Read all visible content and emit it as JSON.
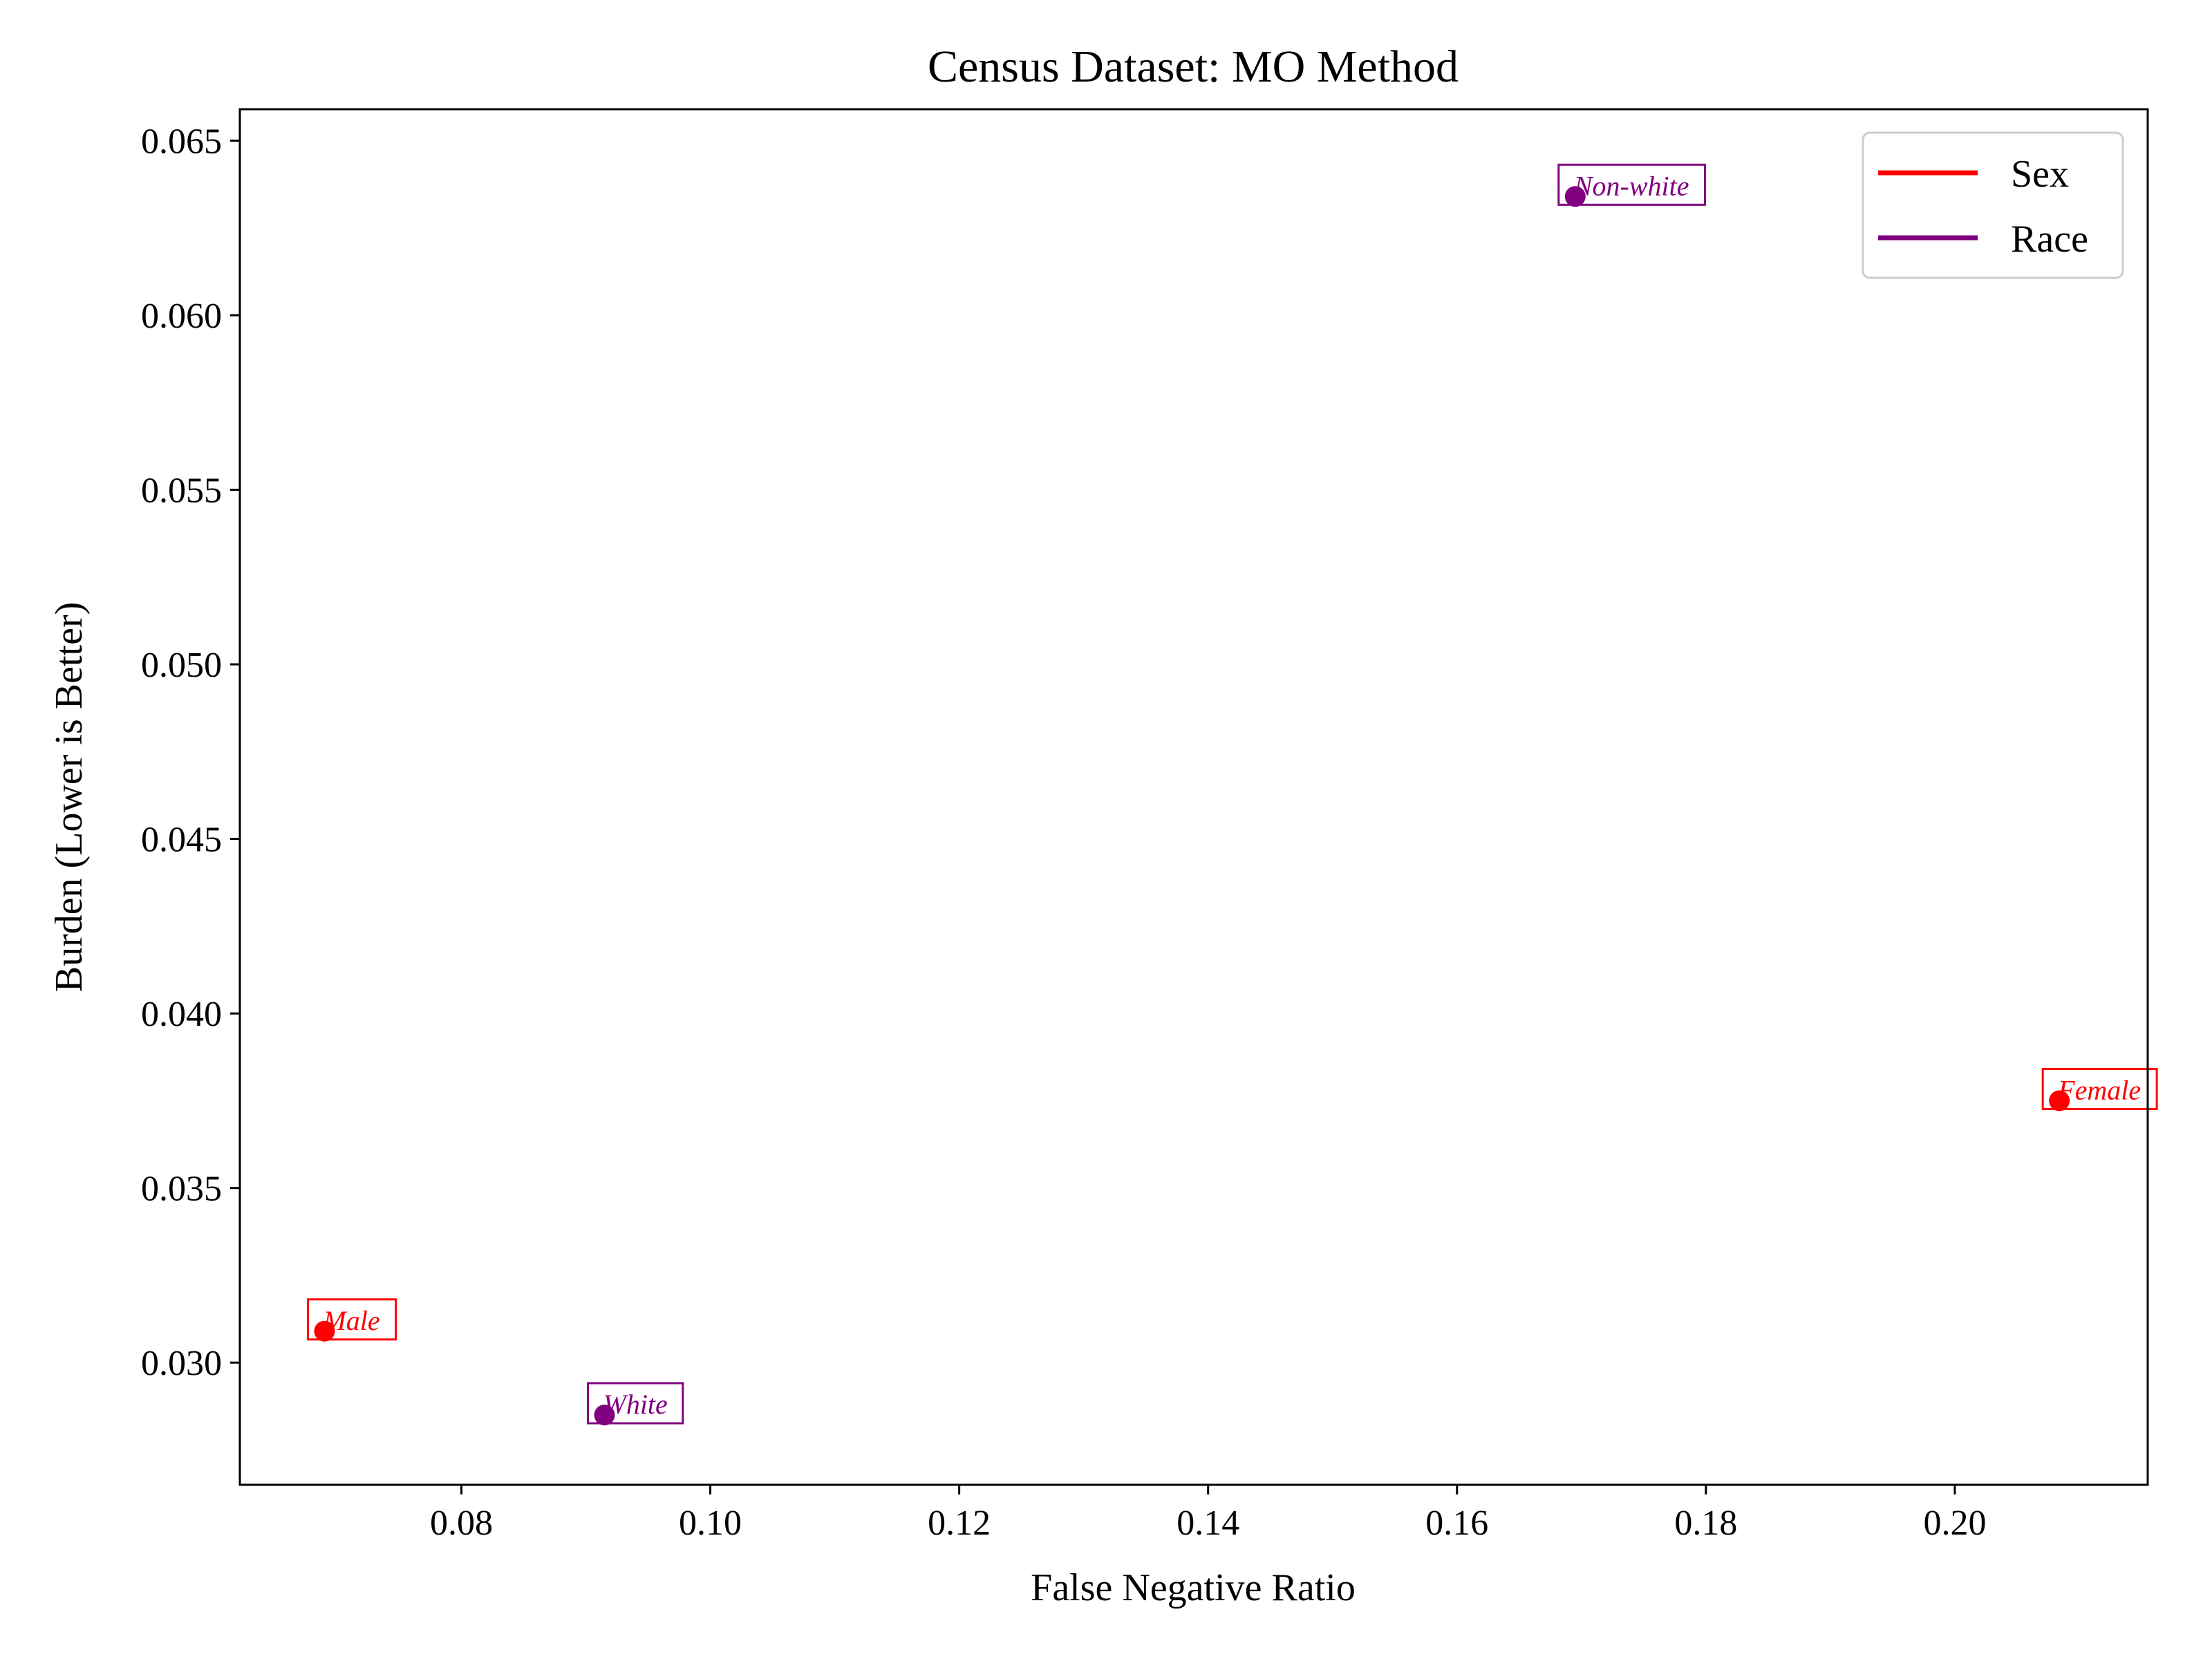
{
  "chart_data": {
    "type": "scatter",
    "title": "Census Dataset: MO Method",
    "xlabel": "False Negative Ratio",
    "ylabel": "Burden (Lower is Better)",
    "xlim": [
      0.0622,
      0.2155
    ],
    "ylim": [
      0.0265,
      0.0659
    ],
    "xticks": [
      0.08,
      0.1,
      0.12,
      0.14,
      0.16,
      0.18,
      0.2
    ],
    "xtick_labels": [
      "0.08",
      "0.10",
      "0.12",
      "0.14",
      "0.16",
      "0.18",
      "0.20"
    ],
    "yticks": [
      0.03,
      0.035,
      0.04,
      0.045,
      0.05,
      0.055,
      0.06,
      0.065
    ],
    "ytick_labels": [
      "0.030",
      "0.035",
      "0.040",
      "0.045",
      "0.050",
      "0.055",
      "0.060",
      "0.065"
    ],
    "grid": false,
    "legend_position": "top-right",
    "series": [
      {
        "name": "Sex",
        "color": "#ff0000",
        "points": [
          {
            "label": "Male",
            "x": 0.069,
            "y": 0.0309
          },
          {
            "label": "Female",
            "x": 0.2084,
            "y": 0.0375
          }
        ]
      },
      {
        "name": "Race",
        "color": "#800080",
        "points": [
          {
            "label": "White",
            "x": 0.0915,
            "y": 0.0285
          },
          {
            "label": "Non-white",
            "x": 0.1695,
            "y": 0.0634
          }
        ]
      }
    ]
  }
}
